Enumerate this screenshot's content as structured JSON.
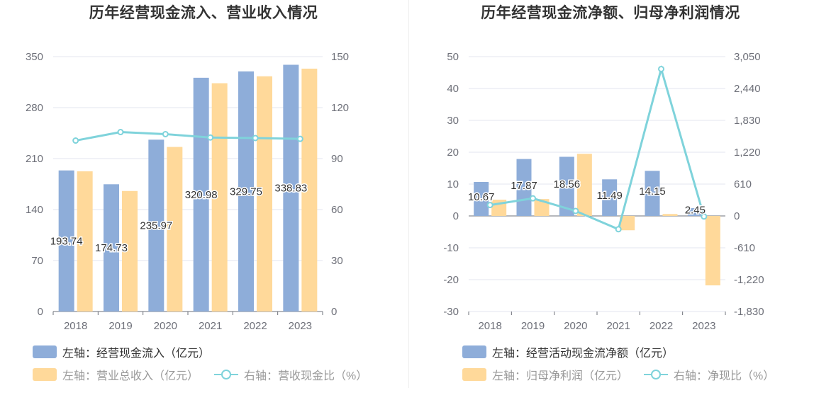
{
  "colors": {
    "blue": "#8eadd9",
    "orange": "#ffd99a",
    "line": "#7fd3db",
    "grid": "#e3e6ef",
    "legend_text_dark": "#333333",
    "legend_text_dim": "#999999"
  },
  "left": {
    "title": "历年经营现金流入、营业收入情况",
    "legend": {
      "s1": "左轴：经营现金流入（亿元）",
      "s2": "左轴：营业总收入（亿元）",
      "s3": "右轴：营收现金比（%）"
    }
  },
  "right": {
    "title": "历年经营现金流净额、归母净利润情况",
    "legend": {
      "s1": "左轴：经营活动现金流净额（亿元）",
      "s2": "左轴：归母净利润（亿元）",
      "s3": "右轴：净现比（%）"
    }
  },
  "chart_data": [
    {
      "type": "bar",
      "title": "历年经营现金流入、营业收入情况",
      "categories": [
        "2018",
        "2019",
        "2020",
        "2021",
        "2022",
        "2023"
      ],
      "left_axis": {
        "min": 0,
        "max": 350,
        "ticks": [
          "0",
          "70",
          "140",
          "210",
          "280",
          "350"
        ]
      },
      "right_axis": {
        "min": 0,
        "max": 150,
        "ticks": [
          "0",
          "30",
          "60",
          "90",
          "120",
          "150"
        ]
      },
      "series": [
        {
          "name": "左轴：经营现金流入（亿元）",
          "type": "bar",
          "axis": "left",
          "values": [
            193.74,
            174.73,
            235.97,
            320.98,
            329.75,
            338.83
          ],
          "labels": [
            "193.74",
            "174.73",
            "235.97",
            "320.98",
            "329.75",
            "338.83"
          ]
        },
        {
          "name": "左轴：营业总收入（亿元）",
          "type": "bar",
          "axis": "left",
          "values": [
            192.5,
            165.5,
            226.0,
            313.5,
            323.0,
            333.5
          ]
        },
        {
          "name": "右轴：营收现金比（%）",
          "type": "line",
          "axis": "right",
          "values": [
            100.6,
            105.6,
            104.4,
            102.4,
            102.1,
            101.6
          ]
        }
      ],
      "grid": true,
      "legend_position": "bottom-left"
    },
    {
      "type": "bar",
      "title": "历年经营现金流净额、归母净利润情况",
      "categories": [
        "2018",
        "2019",
        "2020",
        "2021",
        "2022",
        "2023"
      ],
      "left_axis": {
        "min": -30,
        "max": 50,
        "ticks": [
          "-30",
          "-20",
          "-10",
          "0",
          "10",
          "20",
          "30",
          "40",
          "50"
        ]
      },
      "right_axis": {
        "min": -1830,
        "max": 3050,
        "ticks": [
          "-1,830",
          "-1,220",
          "-610",
          "0",
          "610",
          "1,220",
          "1,830",
          "2,440",
          "3,050"
        ]
      },
      "series": [
        {
          "name": "左轴：经营活动现金流净额（亿元）",
          "type": "bar",
          "axis": "left",
          "values": [
            10.67,
            17.87,
            18.56,
            11.49,
            14.15,
            2.45
          ],
          "labels": [
            "10.67",
            "17.87",
            "18.56",
            "11.49",
            "14.15",
            "2.45"
          ]
        },
        {
          "name": "左轴：归母净利润（亿元）",
          "type": "bar",
          "axis": "left",
          "values": [
            5.1,
            5.3,
            19.5,
            -4.5,
            0.6,
            -21.8
          ]
        },
        {
          "name": "右轴：净现比（%）",
          "type": "line",
          "axis": "right",
          "values": [
            209,
            337,
            95,
            -255,
            2813,
            -11
          ]
        }
      ],
      "grid": true,
      "legend_position": "bottom-left"
    }
  ]
}
